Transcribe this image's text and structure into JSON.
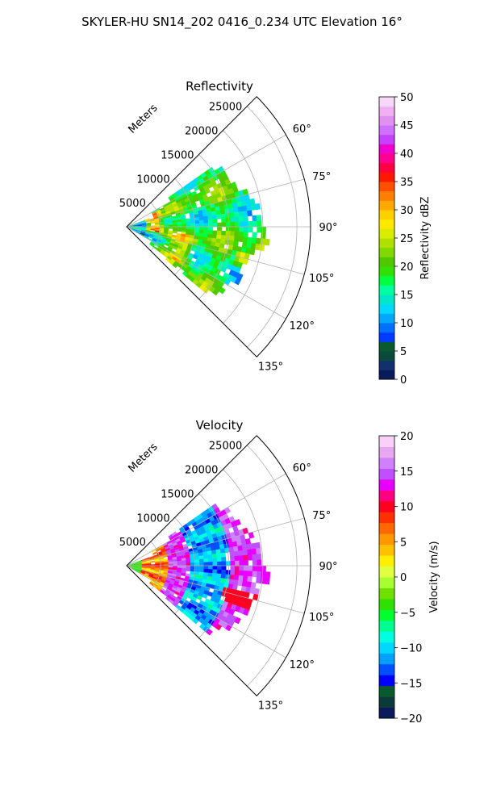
{
  "figure_title": "SKYLER-HU  SN14_202  0416_0.234 UTC Elevation 16°",
  "chart_data": [
    {
      "type": "polar-sector-heatmap",
      "title": "Reflectivity",
      "radial_label": "Meters",
      "radial_ticks": [
        "5000",
        "10000",
        "15000",
        "20000",
        "25000"
      ],
      "radial_tick_values": [
        5000,
        10000,
        15000,
        20000,
        25000
      ],
      "range_max_m": 27000,
      "azimuth_range_deg": [
        45,
        135
      ],
      "azimuth_ticks": [
        "60°",
        "75°",
        "90°",
        "105°",
        "120°",
        "135°"
      ],
      "azimuth_tick_values": [
        60,
        75,
        90,
        105,
        120,
        135
      ],
      "grid": true,
      "colorbar": {
        "label": "Reflectivity dBZ",
        "min": 0,
        "max": 50,
        "ticks": [
          "0",
          "5",
          "10",
          "15",
          "20",
          "25",
          "30",
          "35",
          "40",
          "45",
          "50"
        ],
        "tick_values": [
          0,
          5,
          10,
          15,
          20,
          25,
          30,
          35,
          40,
          45,
          50
        ],
        "colors": [
          "#0a1a5a",
          "#12306e",
          "#0a4a3a",
          "#0a5a30",
          "#003cff",
          "#0070ff",
          "#00a8ff",
          "#00d8ff",
          "#00e8c8",
          "#00ffa0",
          "#00ff40",
          "#30e000",
          "#50c800",
          "#80d800",
          "#b0e000",
          "#d8ec00",
          "#ffe800",
          "#ffd000",
          "#ffa800",
          "#ff8000",
          "#ff5000",
          "#ff1800",
          "#ff0040",
          "#ff0090",
          "#f000d0",
          "#c840ff",
          "#d070ff",
          "#e090f0",
          "#f0b0f4",
          "#f8d8f8"
        ]
      },
      "field": "reflectivity",
      "echo_extent_deg": [
        55,
        130
      ],
      "echo_extent_m": [
        0,
        21500
      ]
    },
    {
      "type": "polar-sector-heatmap",
      "title": "Velocity",
      "radial_label": "Meters",
      "radial_ticks": [
        "5000",
        "10000",
        "15000",
        "20000",
        "25000"
      ],
      "radial_tick_values": [
        5000,
        10000,
        15000,
        20000,
        25000
      ],
      "range_max_m": 27000,
      "azimuth_range_deg": [
        45,
        135
      ],
      "azimuth_ticks": [
        "60°",
        "75°",
        "90°",
        "105°",
        "120°",
        "135°"
      ],
      "azimuth_tick_values": [
        60,
        75,
        90,
        105,
        120,
        135
      ],
      "grid": true,
      "colorbar": {
        "label": "Velocity (m/s)",
        "min": -20,
        "max": 20,
        "ticks": [
          "−20",
          "−15",
          "−10",
          "−5",
          "0",
          "5",
          "10",
          "15",
          "20"
        ],
        "tick_values": [
          -20,
          -15,
          -10,
          -5,
          0,
          5,
          10,
          15,
          20
        ],
        "colors": [
          "#0a1a5a",
          "#0a3a3a",
          "#0a5a30",
          "#0000ff",
          "#0050ff",
          "#00a0ff",
          "#00d8ff",
          "#00ffe0",
          "#00ff90",
          "#00ff30",
          "#30e000",
          "#70e000",
          "#a8ff30",
          "#e0ff40",
          "#ffee00",
          "#ffc000",
          "#ff9800",
          "#ff6800",
          "#ff3000",
          "#ff0020",
          "#ff0080",
          "#e800ff",
          "#c050ff",
          "#d080ff",
          "#e8a8f0",
          "#f8d0f8"
        ]
      },
      "field": "velocity",
      "echo_extent_deg": [
        55,
        130
      ],
      "echo_extent_m": [
        0,
        21500
      ]
    }
  ]
}
